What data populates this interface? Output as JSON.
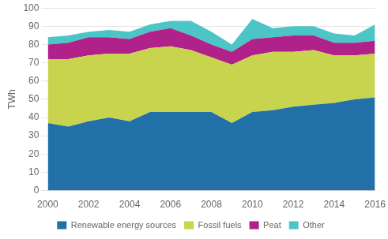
{
  "chart_data": {
    "type": "area",
    "stacked": true,
    "x": [
      2000,
      2001,
      2002,
      2003,
      2004,
      2005,
      2006,
      2007,
      2008,
      2009,
      2010,
      2011,
      2012,
      2013,
      2014,
      2015,
      2016
    ],
    "series": [
      {
        "name": "Renewable energy sources",
        "color": "#2171a8",
        "values": [
          37,
          35,
          38,
          40,
          38,
          43,
          43,
          43,
          43,
          37,
          43,
          44,
          46,
          47,
          48,
          50,
          51
        ]
      },
      {
        "name": "Fossil fuels",
        "color": "#c8d44e",
        "values": [
          35,
          37,
          36,
          35,
          37,
          35,
          36,
          34,
          30,
          32,
          31,
          32,
          30,
          30,
          26,
          24,
          24
        ]
      },
      {
        "name": "Peat",
        "color": "#b0218a",
        "values": [
          8,
          9,
          10,
          9,
          8,
          9,
          10,
          8,
          7,
          7,
          9,
          8,
          9,
          8,
          7,
          7,
          7
        ]
      },
      {
        "name": "Other",
        "color": "#4bc5c5",
        "values": [
          4,
          4,
          3,
          4,
          4,
          4,
          4,
          8,
          7,
          4,
          11,
          5,
          5,
          5,
          5,
          4,
          9
        ]
      }
    ],
    "ylabel": "TWh",
    "xlim": [
      2000,
      2016
    ],
    "xticks": [
      2000,
      2002,
      2004,
      2006,
      2008,
      2010,
      2012,
      2014,
      2016
    ],
    "ylim": [
      0,
      100
    ],
    "yticks": [
      0,
      10,
      20,
      30,
      40,
      50,
      60,
      70,
      80,
      90,
      100
    ],
    "grid": true,
    "legend": "bottom"
  }
}
